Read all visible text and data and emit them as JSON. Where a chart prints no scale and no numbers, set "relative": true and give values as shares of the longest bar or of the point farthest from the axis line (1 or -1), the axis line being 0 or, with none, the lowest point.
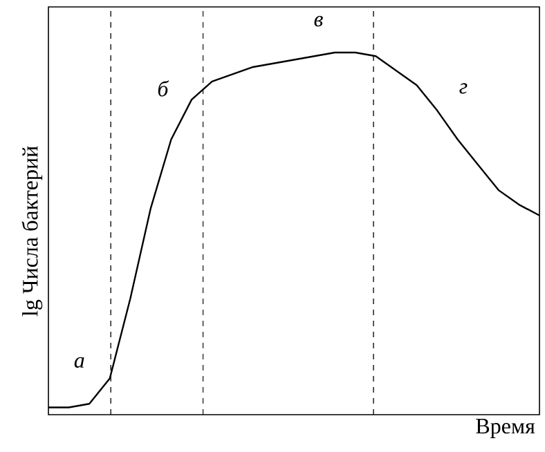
{
  "chart_data": {
    "type": "line",
    "relative": true,
    "xlabel": "Время",
    "ylabel": "lg Числа бактерий",
    "categories": [
      null,
      null,
      null,
      null,
      null,
      null,
      null,
      null,
      null,
      null,
      null,
      null,
      null,
      null,
      null,
      null,
      null,
      null,
      null,
      null,
      null,
      null,
      null,
      null,
      null
    ],
    "marker": "none",
    "line_style": "solid",
    "series": [
      {
        "color": "#000000",
        "values": [
          0.02,
          0.02,
          0.03,
          0.1,
          0.32,
          0.57,
          0.76,
          0.87,
          0.92,
          0.94,
          0.96,
          0.97,
          0.98,
          0.99,
          1.0,
          1.0,
          0.99,
          0.95,
          0.91,
          0.84,
          0.76,
          0.69,
          0.62,
          0.58,
          0.55
        ]
      }
    ],
    "annotations": [
      "а",
      "б",
      "в",
      "г"
    ]
  }
}
